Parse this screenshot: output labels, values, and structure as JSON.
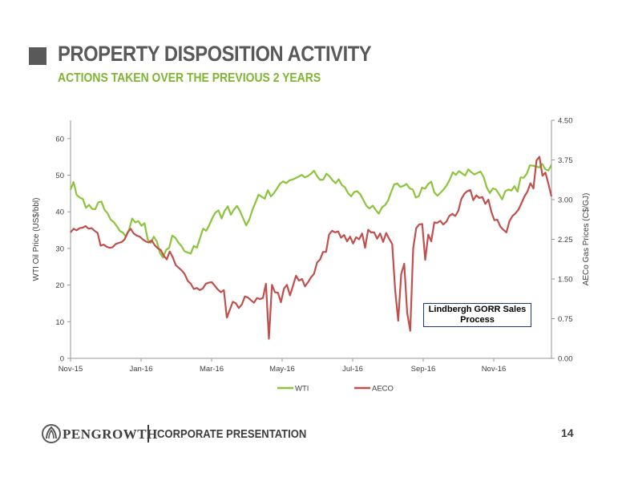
{
  "header": {
    "title": "PROPERTY DISPOSITION ACTIVITY",
    "subtitle": "ACTIONS TAKEN OVER THE PREVIOUS 2 YEARS"
  },
  "footer": {
    "brand": "PENGROWTH",
    "presentation": "CORPORATE PRESENTATION",
    "page_number": "14"
  },
  "colors": {
    "wti": "#8cc43c",
    "aeco": "#c0504d",
    "title": "#595959",
    "subtitle": "#80b431",
    "axis": "#999999"
  },
  "chart_data": {
    "type": "line",
    "x_tick_labels": [
      "Nov-15",
      "Jan-16",
      "Mar-16",
      "May-16",
      "Jul-16",
      "Sep-16",
      "Nov-16"
    ],
    "ylabel": "WTI Oil Price (US$/bbl)",
    "ylabel_right": "AECo Gas Prices (C$/GJ)",
    "ylim": [
      0,
      65
    ],
    "ylim_right": [
      0,
      4.5
    ],
    "y_ticks": [
      "0",
      "10",
      "20",
      "30",
      "40",
      "50",
      "60"
    ],
    "y_ticks_right": [
      "0.00",
      "0.75",
      "1.50",
      "2.25",
      "3.00",
      "3.75",
      "4.50"
    ],
    "legend_position": "bottom",
    "annotation": "Lindbergh GORR Sales Process",
    "series": [
      {
        "name": "WTI",
        "axis": "left",
        "values": [
          46.1,
          48.1,
          44.6,
          43.9,
          43.5,
          41.1,
          41.9,
          40.8,
          40.7,
          42.6,
          42.8,
          40.6,
          39.6,
          37.9,
          37.2,
          36.1,
          34.8,
          34.3,
          33.2,
          35.2,
          38.2,
          37.1,
          37.5,
          36.2,
          36.9,
          32.5,
          31.5,
          33.2,
          31.9,
          28.8,
          27.5,
          29.6,
          30.2,
          33.5,
          32.9,
          31.6,
          30.6,
          29.2,
          28.9,
          28.6,
          30.7,
          30.2,
          32.8,
          35.4,
          34.8,
          36.4,
          38.3,
          39.8,
          40.4,
          38.2,
          40.3,
          41.5,
          39.2,
          40.6,
          41.6,
          40.2,
          38.2,
          36.3,
          37.9,
          40.5,
          42.6,
          44.7,
          44.1,
          43.6,
          45.9,
          44.2,
          45.1,
          46.4,
          47.7,
          48.3,
          47.8,
          48.6,
          48.8,
          49.2,
          49.6,
          50.1,
          49.4,
          49.8,
          50.4,
          51.2,
          49.7,
          48.7,
          48.8,
          50.4,
          49.7,
          48.6,
          47.8,
          48.9,
          47.3,
          46.7,
          45.1,
          44.2,
          45.4,
          45.6,
          44.8,
          43.2,
          41.6,
          40.9,
          41.7,
          40.5,
          39.5,
          41.2,
          41.8,
          43.1,
          45.4,
          47.5,
          47.7,
          46.8,
          47.1,
          47.6,
          46.4,
          46.1,
          43.9,
          44.3,
          46.6,
          46.3,
          47.6,
          48.2,
          45.3,
          44.4,
          45.2,
          46.1,
          47.2,
          48.8,
          50.8,
          50.1,
          51.1,
          50.5,
          49.9,
          51.6,
          50.8,
          50.2,
          50.6,
          51.0,
          49.5,
          46.7,
          45.1,
          46.4,
          46.1,
          44.8,
          43.4,
          45.6,
          46.1,
          45.8,
          47.0,
          45.5,
          49.4,
          49.3,
          50.4,
          52.7,
          52.6,
          52.4,
          52.1,
          53.1,
          51.6,
          51.3,
          52.8
        ]
      },
      {
        "name": "AECO",
        "axis": "right",
        "values": [
          2.38,
          2.45,
          2.42,
          2.46,
          2.47,
          2.5,
          2.45,
          2.46,
          2.41,
          2.37,
          2.13,
          2.15,
          2.11,
          2.09,
          2.1,
          2.16,
          2.18,
          2.2,
          2.25,
          2.38,
          2.45,
          2.36,
          2.32,
          2.3,
          2.25,
          2.21,
          2.19,
          2.23,
          2.14,
          2.08,
          2.05,
          1.94,
          1.87,
          2.02,
          1.91,
          1.76,
          1.71,
          1.66,
          1.59,
          1.46,
          1.41,
          1.31,
          1.33,
          1.29,
          1.32,
          1.41,
          1.43,
          1.44,
          1.37,
          1.3,
          1.25,
          1.29,
          0.77,
          0.92,
          1.07,
          1.04,
          0.95,
          1.02,
          1.17,
          1.15,
          1.1,
          1.05,
          1.14,
          1.12,
          1.14,
          1.41,
          0.37,
          1.39,
          1.25,
          1.24,
          1.06,
          1.32,
          1.39,
          1.19,
          1.37,
          1.56,
          1.47,
          1.5,
          1.36,
          1.44,
          1.53,
          1.6,
          1.81,
          1.87,
          2.01,
          2.01,
          2.34,
          2.41,
          2.38,
          2.4,
          2.28,
          2.33,
          2.21,
          2.3,
          2.17,
          2.29,
          2.25,
          2.36,
          2.09,
          2.43,
          2.38,
          2.38,
          2.26,
          2.36,
          2.2,
          2.37,
          2.26,
          2.16,
          1.29,
          0.71,
          1.59,
          1.79,
          0.86,
          0.52,
          2.08,
          2.46,
          2.53,
          2.54,
          1.86,
          2.34,
          2.21,
          2.57,
          2.56,
          2.6,
          2.53,
          2.58,
          2.69,
          2.73,
          2.69,
          2.79,
          3.01,
          3.11,
          3.16,
          3.18,
          2.99,
          3.08,
          3.03,
          3.05,
          2.92,
          3.0,
          2.77,
          2.61,
          2.62,
          2.49,
          2.43,
          2.38,
          2.59,
          2.69,
          2.74,
          2.81,
          2.93,
          3.06,
          3.15,
          3.31,
          3.21,
          3.74,
          3.81,
          3.45,
          3.51,
          3.29,
          3.06
        ]
      }
    ]
  }
}
